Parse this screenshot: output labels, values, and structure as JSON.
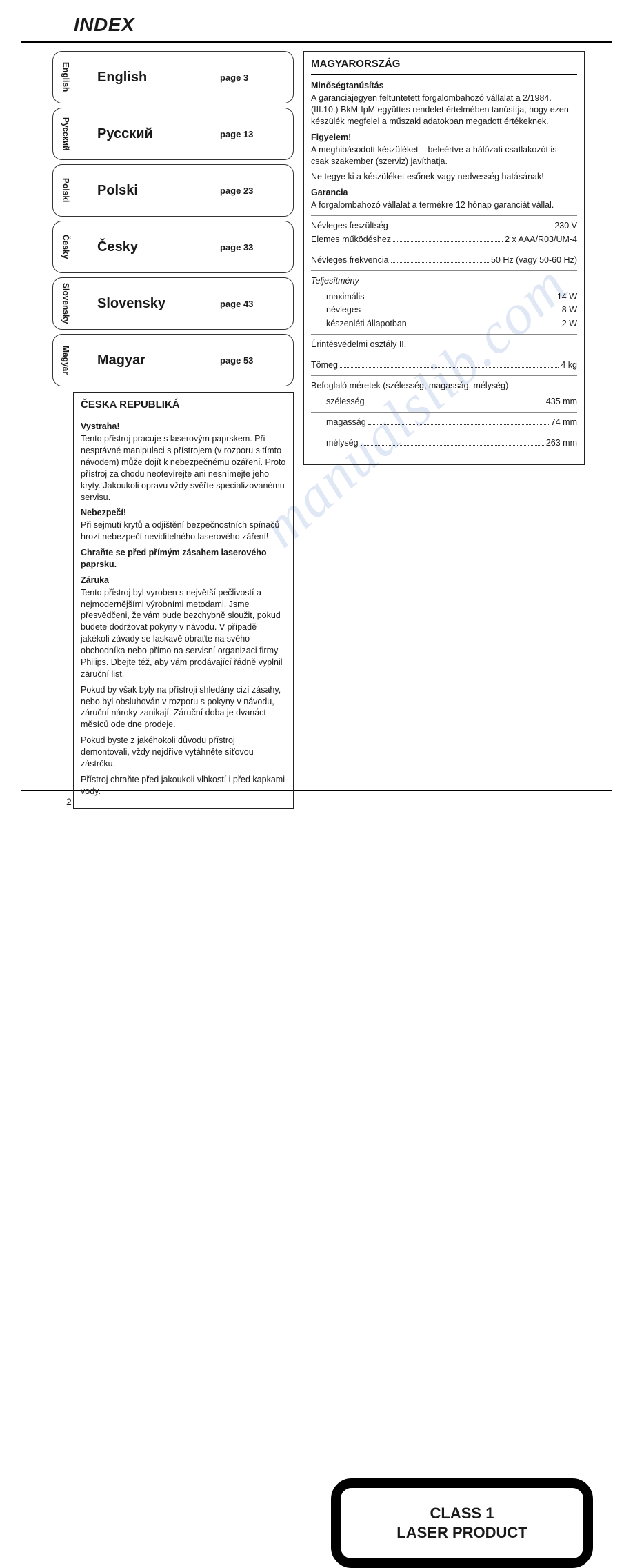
{
  "header": {
    "title": "INDEX"
  },
  "languages": [
    {
      "tab": "English",
      "name": "English",
      "page": "page 3"
    },
    {
      "tab": "Русский",
      "name": "Русский",
      "page": "page 13"
    },
    {
      "tab": "Polski",
      "name": "Polski",
      "page": "page 23"
    },
    {
      "tab": "Česky",
      "name": "Česky",
      "page": "page 33"
    },
    {
      "tab": "Slovensky",
      "name": "Slovensky",
      "page": "page 43"
    },
    {
      "tab": "Magyar",
      "name": "Magyar",
      "page": "page 53"
    }
  ],
  "czech": {
    "title": "ČESKA REPUBLIKÁ",
    "h1": "Vystraha!",
    "p1": "Tento přístroj pracuje s laserovým paprskem. Při nesprávné manipulaci s přístrojem (v rozporu s tímto návodem) může dojít k nebezpečnému ozáření. Proto přístroj za chodu neotevírejte ani nesnímejte jeho kryty. Jakoukoli opravu vždy svěřte specializovanému servisu.",
    "h2": "Nebezpečí!",
    "p2": "Při sejmutí krytů a odjištění bezpečnostních spínačů hrozí nebezpečí neviditelného laserového záření!",
    "p3": "Chraňte se před přímým zásahem laserového paprsku.",
    "h3": "Záruka",
    "p4": "Tento přístroj byl vyroben s největší pečlivostí a nejmodernějšími výrobními metodami. Jsme přesvědčeni, že vám bude bezchybně sloužit, pokud budete dodržovat pokyny v návodu. V případě jakékoli závady se laskavě obraťte na svého obchodníka nebo přímo na servisní organizaci firmy Philips. Dbejte též, aby vám prodávající řádně vyplnil záruční list.",
    "p5": "Pokud by však byly na přístroji shledány cizí zásahy, nebo byl obsluhován v rozporu s pokyny v návodu, záruční nároky zanikají. Záruční doba je dvanáct měsíců ode dne prodeje.",
    "p6": "Pokud byste z jakéhokoli důvodu přístroj demontovali, vždy nejdříve vytáhněte síťovou zástrčku.",
    "p7": "Přístroj chraňte před jakoukoli vlhkostí i před kapkami vody."
  },
  "hungary": {
    "title": "MAGYARORSZÁG",
    "h1": "Minőségtanúsítás",
    "p1": "A garanciajegyen feltüntetett forgalombahozó vállalat a 2/1984. (III.10.) BkM-IpM együttes rendelet értelmében tanúsítja, hogy ezen készülék megfelel a műszaki adatokban megadott értékeknek.",
    "h2": "Figyelem!",
    "p2": "A meghibásodott készüléket – beleértve a hálózati csatlakozót is – csak szakember (szerviz) javíthatja.",
    "p3": "Ne tegye ki a készüléket esőnek vagy nedvesség hatásának!",
    "h3": "Garancia",
    "p4": "A forgalombahozó vállalat a termékre 12 hónap garanciát vállal.",
    "specs": {
      "r1": {
        "label": "Névleges feszültség",
        "val": "230 V"
      },
      "r2": {
        "label": "Elemes működéshez",
        "val": "2 x AAA/R03/UM-4"
      },
      "r3": {
        "label": "Névleges frekvencia",
        "val": "50 Hz (vagy 50-60 Hz)"
      },
      "section1": "Teljesítmény",
      "r4": {
        "label": "maximális",
        "val": "14 W"
      },
      "r5": {
        "label": "névleges",
        "val": "8 W"
      },
      "r6": {
        "label": "készenléti állapotban",
        "val": "2 W"
      },
      "line1": "Érintésvédelmi osztály II.",
      "r7": {
        "label": "Tömeg",
        "val": "4 kg"
      },
      "section2": "Befoglaló méretek (szélesség, magasság, mélység)",
      "r8": {
        "label": "szélesség",
        "val": "435 mm"
      },
      "r9": {
        "label": "magasság",
        "val": "74 mm"
      },
      "r10": {
        "label": "mélység",
        "val": "263 mm"
      }
    }
  },
  "laser": {
    "line1": "CLASS 1",
    "line2": "LASER PRODUCT"
  },
  "footer": {
    "pageNum": "2"
  },
  "watermark": "manualslib.com",
  "colors": {
    "fg": "#1a1a1a",
    "border": "#222",
    "watermark": "#c9d6ed"
  }
}
